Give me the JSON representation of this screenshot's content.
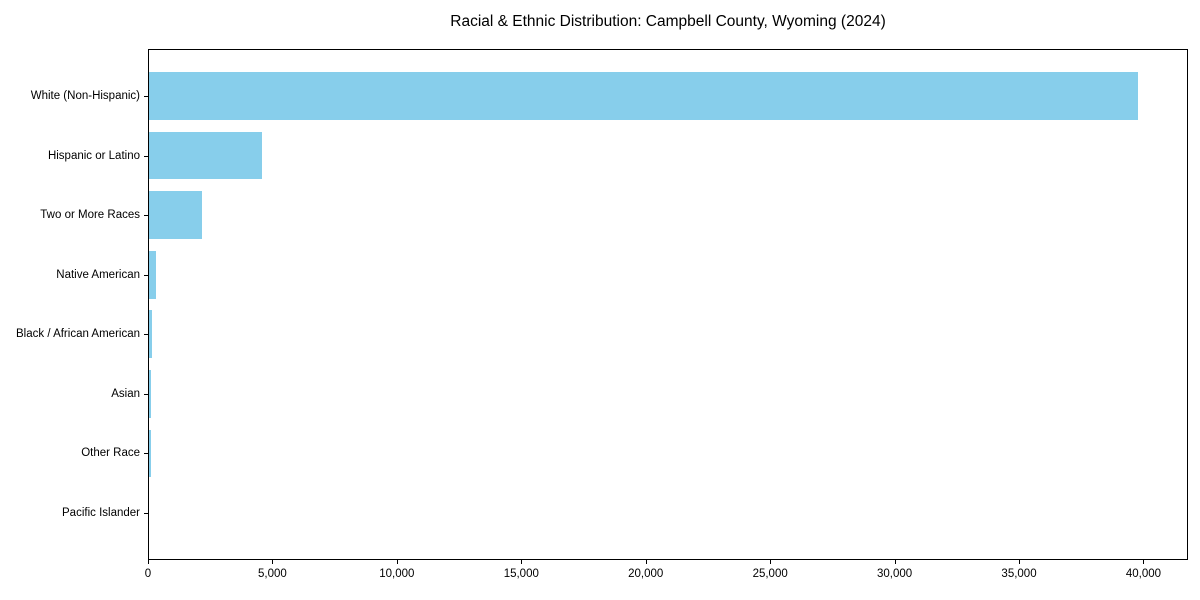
{
  "chart_data": {
    "type": "bar",
    "orientation": "horizontal",
    "title": "Racial & Ethnic Distribution: Campbell County, Wyoming (2024)",
    "categories": [
      "White (Non-Hispanic)",
      "Hispanic or Latino",
      "Two or More Races",
      "Native American",
      "Black / African American",
      "Asian",
      "Other Race",
      "Pacific Islander"
    ],
    "values": [
      39800,
      4580,
      2170,
      340,
      170,
      120,
      130,
      20
    ],
    "xlabel": "",
    "ylabel": "",
    "xlim": [
      0,
      41790
    ],
    "x_tick_values": [
      0,
      5000,
      10000,
      15000,
      20000,
      25000,
      30000,
      35000,
      40000
    ],
    "x_tick_labels": [
      "0",
      "5,000",
      "10,000",
      "15,000",
      "20,000",
      "25,000",
      "30,000",
      "35,000",
      "40,000"
    ],
    "bar_color": "#87CEEB",
    "grid": false,
    "legend": null
  }
}
